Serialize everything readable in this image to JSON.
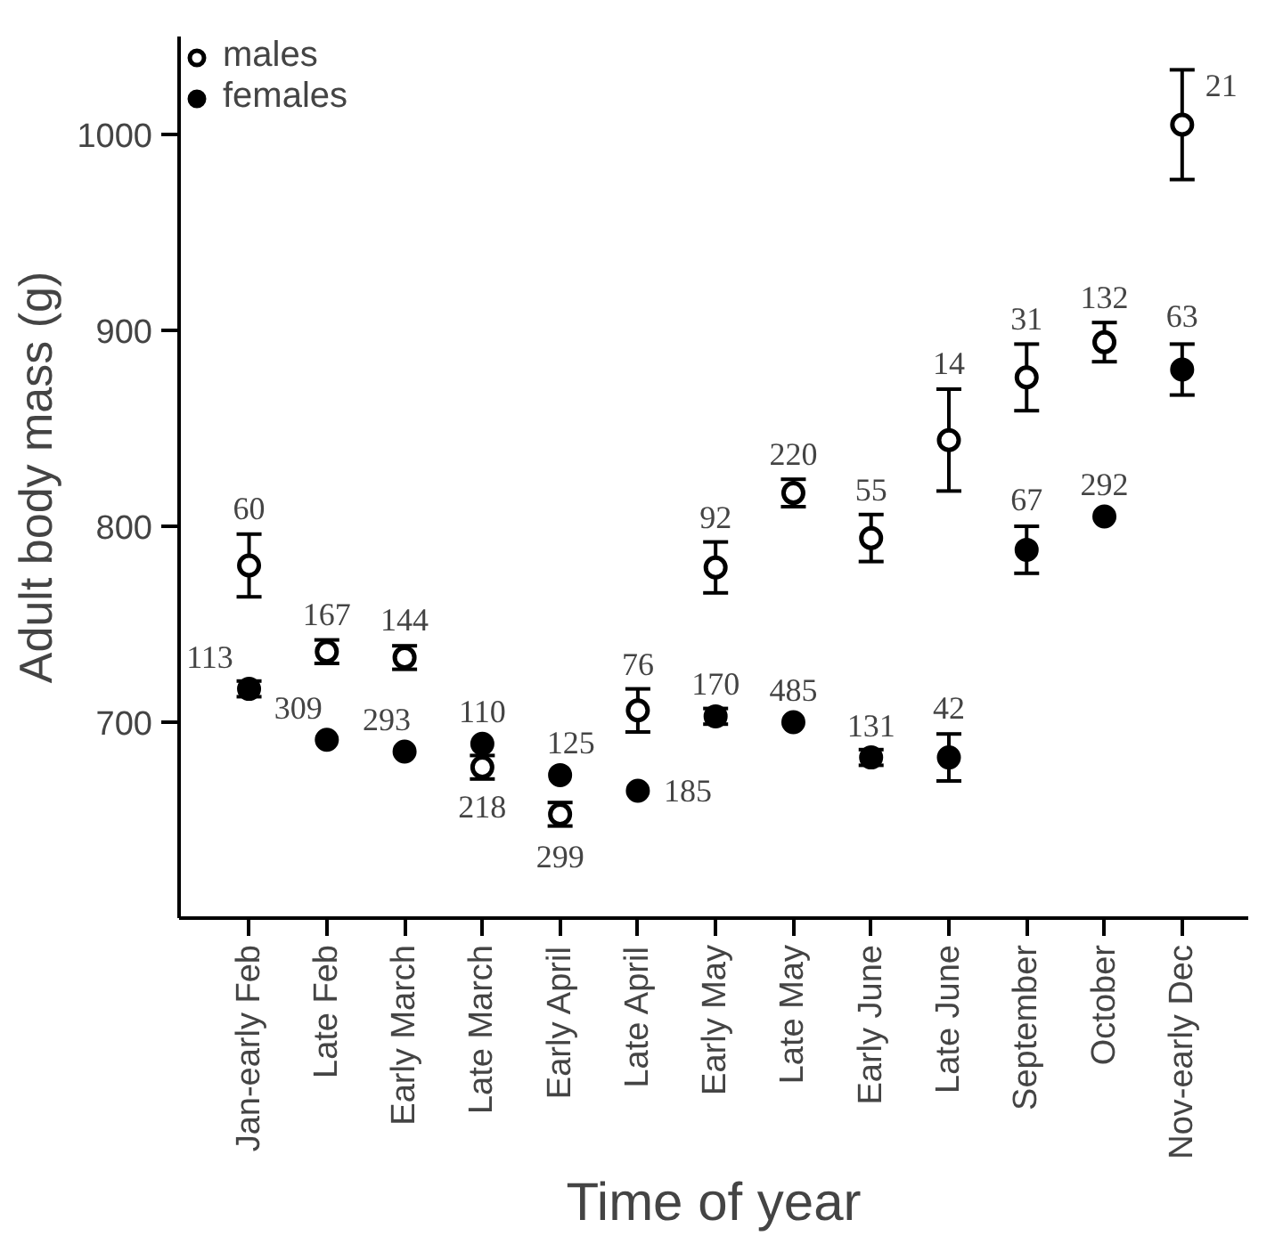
{
  "chart_data": {
    "type": "scatter",
    "xlabel": "Time of year",
    "ylabel": "Adult body mass (g)",
    "categories": [
      "Jan-early Feb",
      "Late Feb",
      "Early March",
      "Late March",
      "Early April",
      "Late April",
      "Early May",
      "Late May",
      "Early June",
      "Late June",
      "September",
      "October",
      "Nov-early Dec"
    ],
    "ylim": [
      600,
      1050
    ],
    "yticks": [
      700,
      800,
      900,
      1000
    ],
    "grid": false,
    "legend": "top left",
    "marker": "circle",
    "series": [
      {
        "name": "males",
        "color": "#ffffff",
        "values": [
          780,
          736,
          733,
          677,
          653,
          706,
          779,
          817,
          794,
          844,
          876,
          894,
          1005
        ],
        "errors": [
          16,
          6,
          6,
          6,
          6,
          11,
          13,
          7,
          12,
          26,
          17,
          10,
          28
        ]
      },
      {
        "name": "females",
        "color": "#000000",
        "values": [
          717,
          691,
          685,
          689,
          673,
          665,
          703,
          700,
          682,
          682,
          788,
          805,
          880
        ],
        "errors": [
          4,
          null,
          null,
          null,
          null,
          null,
          4,
          null,
          4,
          12,
          12,
          null,
          13
        ]
      }
    ],
    "annotations": [
      {
        "text": "60",
        "x": "Jan-early Feb",
        "y": 780
      },
      {
        "text": "167",
        "x": "Late Feb",
        "y": 736
      },
      {
        "text": "144",
        "x": "Early March",
        "y": 733
      },
      {
        "text": "218",
        "x": "Late March",
        "y": 677
      },
      {
        "text": "299",
        "x": "Early April",
        "y": 653
      },
      {
        "text": "76",
        "x": "Late April",
        "y": 706
      },
      {
        "text": "92",
        "x": "Early May",
        "y": 779
      },
      {
        "text": "220",
        "x": "Late May",
        "y": 817
      },
      {
        "text": "55",
        "x": "Early June",
        "y": 794
      },
      {
        "text": "14",
        "x": "Late June",
        "y": 844
      },
      {
        "text": "31",
        "x": "September",
        "y": 876
      },
      {
        "text": "132",
        "x": "October",
        "y": 894
      },
      {
        "text": "21",
        "x": "Nov-early Dec",
        "y": 1005
      },
      {
        "text": "113",
        "x": "Jan-early Feb",
        "y": 717
      },
      {
        "text": "309",
        "x": "Late Feb",
        "y": 691
      },
      {
        "text": "293",
        "x": "Early March",
        "y": 685
      },
      {
        "text": "110",
        "x": "Late March",
        "y": 689
      },
      {
        "text": "125",
        "x": "Early April",
        "y": 673
      },
      {
        "text": "185",
        "x": "Late April",
        "y": 665
      },
      {
        "text": "170",
        "x": "Early May",
        "y": 703
      },
      {
        "text": "485",
        "x": "Late May",
        "y": 700
      },
      {
        "text": "131",
        "x": "Early June",
        "y": 682
      },
      {
        "text": "42",
        "x": "Late June",
        "y": 682
      },
      {
        "text": "67",
        "x": "September",
        "y": 788
      },
      {
        "text": "292",
        "x": "October",
        "y": 805
      },
      {
        "text": "63",
        "x": "Nov-early Dec",
        "y": 880
      }
    ]
  }
}
